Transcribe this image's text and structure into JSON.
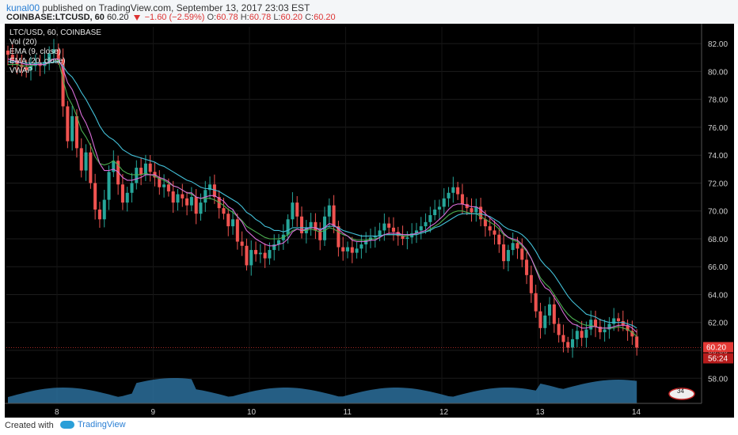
{
  "header": {
    "author": "kunal00",
    "published_text": "published on TradingView.com, September 13, 2017 23:03 EST",
    "symbol": "COINBASE:LTCUSD, 60",
    "last": "60.20",
    "change": "−1.60 (−2.59%)",
    "open_label": "O:",
    "open": "60.78",
    "high_label": "H:",
    "high": "60.78",
    "low_label": "L:",
    "low": "60.20",
    "close_label": "C:",
    "close": "60.20"
  },
  "legend": {
    "title": "LTC/USD, 60, COINBASE",
    "vol": "Vol (20)",
    "ema9": "EMA (9, close)",
    "ema20": "EMA (20, close)",
    "vwap": "VWAP"
  },
  "footer": {
    "created": "Created with",
    "brand": "TradingView"
  },
  "colors": {
    "up": "#26a69a",
    "down": "#ef5350",
    "ema9": "#d86dd8",
    "ema20": "#43c0d8",
    "vwap": "#4caf50",
    "price_tag": "#e53935",
    "volume": "#2c6f9b"
  },
  "chart_data": {
    "type": "candlestick",
    "x_ticks": [
      "8",
      "9",
      "10",
      "11",
      "12",
      "13",
      "14"
    ],
    "y_ticks": [
      "58.00",
      "60.00",
      "62.00",
      "64.00",
      "66.00",
      "68.00",
      "70.00",
      "72.00",
      "74.00",
      "76.00",
      "78.00",
      "80.00",
      "82.00"
    ],
    "ylim": [
      56.2,
      83.2
    ],
    "last_price": "60.20",
    "countdown": "56:24",
    "volume_badge": "34",
    "closes": [
      81.2,
      80.8,
      80.5,
      80.3,
      80.1,
      80.4,
      80.6,
      80.4,
      80.7,
      81.3,
      81.6,
      80.9,
      77.5,
      75.0,
      76.8,
      74.5,
      72.9,
      74.2,
      72.0,
      70.1,
      69.4,
      70.8,
      72.8,
      73.6,
      71.9,
      70.6,
      71.3,
      72.0,
      73.1,
      72.6,
      73.4,
      72.8,
      72.4,
      71.7,
      71.9,
      71.4,
      70.6,
      71.2,
      70.9,
      70.4,
      71.0,
      69.8,
      70.6,
      71.5,
      71.9,
      71.0,
      70.2,
      69.8,
      68.9,
      69.4,
      67.8,
      67.5,
      66.1,
      67.2,
      66.9,
      67.0,
      66.6,
      67.2,
      67.6,
      67.9,
      68.3,
      69.4,
      70.6,
      69.6,
      68.4,
      68.8,
      69.2,
      68.6,
      67.9,
      69.6,
      70.4,
      68.9,
      67.4,
      67.1,
      67.4,
      67.0,
      67.3,
      67.6,
      67.9,
      68.1,
      68.2,
      68.6,
      69.1,
      68.8,
      68.5,
      68.2,
      68.0,
      68.1,
      68.4,
      68.6,
      68.9,
      69.2,
      69.7,
      70.1,
      70.3,
      70.9,
      71.3,
      71.7,
      71.2,
      70.5,
      70.2,
      69.9,
      70.3,
      69.4,
      68.9,
      68.6,
      68.3,
      67.6,
      66.4,
      67.2,
      67.7,
      67.3,
      66.5,
      65.4,
      64.1,
      62.8,
      61.6,
      62.5,
      63.3,
      61.9,
      61.1,
      60.6,
      60.2,
      60.8,
      61.4,
      60.9,
      61.5,
      62.2,
      61.7,
      61.3,
      61.5,
      61.9,
      62.3,
      62.1,
      61.8,
      61.4,
      61.0,
      60.2
    ],
    "ema9": [
      80.9,
      80.8,
      80.7,
      80.6,
      80.5,
      80.5,
      80.5,
      80.5,
      80.5,
      80.7,
      80.9,
      80.9,
      80.2,
      79.2,
      78.7,
      77.9,
      76.9,
      76.3,
      75.5,
      74.4,
      73.4,
      72.9,
      72.9,
      73.0,
      72.8,
      72.4,
      72.2,
      72.2,
      72.3,
      72.4,
      72.6,
      72.6,
      72.6,
      72.4,
      72.3,
      72.1,
      71.8,
      71.7,
      71.5,
      71.3,
      71.3,
      71.0,
      70.9,
      71.0,
      71.1,
      71.1,
      70.9,
      70.7,
      70.3,
      70.1,
      69.6,
      69.2,
      68.6,
      68.3,
      68.0,
      67.8,
      67.6,
      67.5,
      67.5,
      67.6,
      67.7,
      68.0,
      68.5,
      68.7,
      68.6,
      68.7,
      68.8,
      68.8,
      68.6,
      68.8,
      69.1,
      69.0,
      68.7,
      68.4,
      68.2,
      67.9,
      67.8,
      67.8,
      67.8,
      67.9,
      67.9,
      68.1,
      68.3,
      68.4,
      68.4,
      68.4,
      68.3,
      68.3,
      68.3,
      68.4,
      68.5,
      68.6,
      68.9,
      69.1,
      69.4,
      69.7,
      70.1,
      70.4,
      70.5,
      70.5,
      70.4,
      70.3,
      70.3,
      70.1,
      69.8,
      69.5,
      69.2,
      68.9,
      68.4,
      68.1,
      68.0,
      67.9,
      67.6,
      67.2,
      66.6,
      65.8,
      65.0,
      64.5,
      64.3,
      63.8,
      63.3,
      62.7,
      62.2,
      61.9,
      61.8,
      61.6,
      61.6,
      61.7,
      61.7,
      61.6,
      61.6,
      61.6,
      61.7,
      61.8,
      61.8,
      61.8,
      61.6,
      61.3
    ],
    "ema20": [
      80.7,
      80.7,
      80.7,
      80.6,
      80.6,
      80.6,
      80.6,
      80.6,
      80.6,
      80.6,
      80.7,
      80.7,
      80.4,
      79.9,
      79.6,
      79.1,
      78.5,
      78.0,
      77.4,
      76.8,
      76.1,
      75.6,
      75.3,
      75.1,
      74.8,
      74.4,
      74.2,
      74.0,
      73.9,
      73.8,
      73.7,
      73.6,
      73.5,
      73.3,
      73.2,
      73.0,
      72.8,
      72.6,
      72.4,
      72.2,
      72.1,
      71.9,
      71.7,
      71.6,
      71.6,
      71.5,
      71.4,
      71.2,
      71.0,
      70.8,
      70.6,
      70.3,
      69.9,
      69.7,
      69.4,
      69.2,
      68.9,
      68.8,
      68.6,
      68.6,
      68.5,
      68.6,
      68.8,
      68.8,
      68.8,
      68.8,
      68.8,
      68.8,
      68.7,
      68.8,
      68.9,
      68.9,
      68.8,
      68.6,
      68.5,
      68.4,
      68.3,
      68.2,
      68.2,
      68.2,
      68.2,
      68.2,
      68.3,
      68.3,
      68.3,
      68.3,
      68.3,
      68.3,
      68.3,
      68.3,
      68.4,
      68.5,
      68.6,
      68.8,
      68.9,
      69.1,
      69.3,
      69.5,
      69.7,
      69.8,
      69.8,
      69.8,
      69.8,
      69.8,
      69.7,
      69.6,
      69.4,
      69.2,
      68.9,
      68.7,
      68.6,
      68.5,
      68.3,
      68.0,
      67.6,
      67.1,
      66.5,
      66.1,
      65.8,
      65.4,
      64.9,
      64.4,
      63.9,
      63.5,
      63.2,
      62.9,
      62.6,
      62.5,
      62.4,
      62.2,
      62.1,
      62.0,
      62.0,
      62.0,
      62.0,
      61.9,
      61.8,
      61.6
    ],
    "vwap": [
      80.5,
      80.5,
      80.5,
      80.4,
      80.4,
      80.4,
      80.5,
      80.5,
      80.5,
      80.6,
      80.7,
      80.8,
      79.4,
      78.2,
      77.6,
      76.8,
      75.8,
      75.3,
      74.7,
      73.9,
      73.4,
      73.3,
      73.4,
      73.6,
      73.3,
      72.9,
      72.7,
      72.6,
      72.6,
      72.6,
      72.7,
      72.6,
      72.5,
      72.3,
      72.2,
      72.0,
      71.8,
      71.7,
      71.5,
      71.3,
      71.2,
      71.0,
      70.9,
      70.9,
      70.9,
      70.8,
      70.6,
      70.4,
      70.1,
      69.9,
      69.6,
      69.3,
      68.9,
      68.7,
      68.5,
      68.3,
      68.1,
      68.0,
      68.0,
      68.0,
      68.1,
      68.3,
      68.6,
      68.7,
      68.6,
      68.6,
      68.7,
      68.6,
      68.5,
      68.6,
      68.8,
      68.7,
      68.5,
      68.3,
      68.2,
      68.0,
      67.9,
      67.9,
      67.9,
      68.0,
      68.0,
      68.1,
      68.3,
      68.3,
      68.3,
      68.3,
      68.2,
      68.2,
      68.3,
      68.3,
      68.4,
      68.5,
      68.7,
      68.9,
      69.1,
      69.4,
      69.7,
      69.9,
      70.0,
      70.0,
      69.9,
      69.8,
      69.8,
      69.6,
      69.4,
      69.2,
      69.0,
      68.7,
      68.3,
      68.1,
      67.9,
      67.8,
      67.5,
      67.1,
      66.6,
      65.9,
      65.2,
      64.8,
      64.5,
      64.0,
      63.5,
      63.0,
      62.6,
      62.3,
      62.1,
      61.9,
      61.8,
      61.8,
      61.7,
      61.6,
      61.6,
      61.6,
      61.6,
      61.7,
      61.6,
      61.5,
      61.3,
      61.0
    ]
  }
}
